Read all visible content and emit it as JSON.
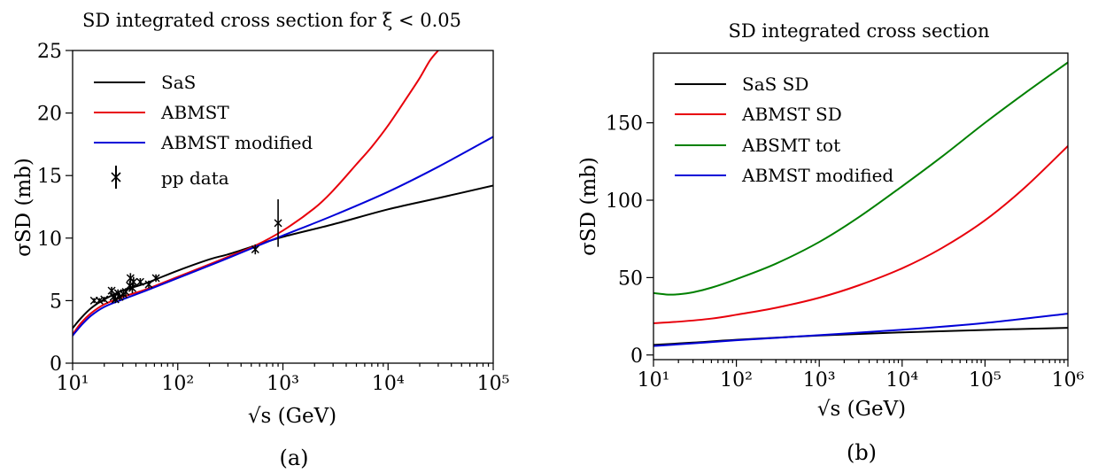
{
  "chart_data": [
    {
      "id": "a",
      "type": "line",
      "title": "SD integrated cross section for ξ < 0.05",
      "xlabel": "√s (GeV)",
      "ylabel": "σSD (mb)",
      "caption": "(a)",
      "xscale": "log",
      "xlim": [
        10,
        100000
      ],
      "ylim": [
        0,
        25
      ],
      "xticks": [
        {
          "value": 10,
          "label": "10¹"
        },
        {
          "value": 100,
          "label": "10²"
        },
        {
          "value": 1000,
          "label": "10³"
        },
        {
          "value": 10000,
          "label": "10⁴"
        },
        {
          "value": 100000,
          "label": "10⁵"
        }
      ],
      "yticks": [
        {
          "value": 0,
          "label": "0"
        },
        {
          "value": 5,
          "label": "5"
        },
        {
          "value": 10,
          "label": "10"
        },
        {
          "value": 15,
          "label": "15"
        },
        {
          "value": 20,
          "label": "20"
        },
        {
          "value": 25,
          "label": "25"
        }
      ],
      "legend": "top-left",
      "grid": false,
      "series": [
        {
          "name": "SaS",
          "color": "#000000",
          "x": [
            10,
            12,
            15,
            20,
            30,
            50,
            100,
            200,
            300,
            546,
            1000,
            3000,
            10000,
            30000,
            100000
          ],
          "y": [
            2.8,
            3.6,
            4.4,
            5.1,
            5.8,
            6.4,
            7.4,
            8.3,
            8.7,
            9.4,
            10.1,
            11.1,
            12.3,
            13.2,
            14.2
          ]
        },
        {
          "name": "ABMST",
          "color": "#e8000b",
          "x": [
            10,
            12,
            15,
            20,
            30,
            50,
            100,
            200,
            300,
            546,
            1000,
            2000,
            3000,
            5000,
            7000,
            10000,
            15000,
            20000,
            25000,
            30000
          ],
          "y": [
            2.3,
            3.2,
            4.0,
            4.7,
            5.3,
            5.9,
            6.9,
            7.9,
            8.5,
            9.4,
            10.6,
            12.4,
            13.8,
            15.9,
            17.3,
            19.0,
            21.2,
            22.8,
            24.2,
            25.0
          ]
        },
        {
          "name": "ABMST modified",
          "color": "#0000d8",
          "x": [
            10,
            12,
            15,
            20,
            30,
            50,
            100,
            200,
            300,
            546,
            1000,
            3000,
            10000,
            30000,
            100000
          ],
          "y": [
            2.2,
            3.0,
            3.8,
            4.5,
            5.1,
            5.8,
            6.8,
            7.8,
            8.4,
            9.3,
            10.2,
            11.8,
            13.7,
            15.7,
            18.1
          ]
        }
      ],
      "pp_data": {
        "name": "pp data",
        "color": "#000000",
        "points": [
          {
            "x": 16,
            "y": 5.0,
            "err": 0.2
          },
          {
            "x": 18,
            "y": 5.0,
            "err": 0.2
          },
          {
            "x": 20,
            "y": 5.1,
            "err": 0.2
          },
          {
            "x": 23.5,
            "y": 5.8,
            "err": 0.3
          },
          {
            "x": 24.5,
            "y": 5.3,
            "err": 0.3
          },
          {
            "x": 25.5,
            "y": 5.1,
            "err": 0.3
          },
          {
            "x": 27,
            "y": 5.6,
            "err": 0.3
          },
          {
            "x": 28,
            "y": 5.3,
            "err": 0.3
          },
          {
            "x": 30.5,
            "y": 5.5,
            "err": 0.3
          },
          {
            "x": 32,
            "y": 5.7,
            "err": 0.3
          },
          {
            "x": 35,
            "y": 6.2,
            "err": 0.4
          },
          {
            "x": 35.5,
            "y": 6.8,
            "err": 0.4
          },
          {
            "x": 37,
            "y": 6.0,
            "err": 0.4
          },
          {
            "x": 38,
            "y": 6.5,
            "err": 0.4
          },
          {
            "x": 44,
            "y": 6.5,
            "err": 0.3
          },
          {
            "x": 53,
            "y": 6.3,
            "err": 0.3
          },
          {
            "x": 62,
            "y": 6.8,
            "err": 0.3
          },
          {
            "x": 546,
            "y": 9.1,
            "err": 0.4
          },
          {
            "x": 900,
            "y": 11.2,
            "err": 1.9
          }
        ]
      }
    },
    {
      "id": "b",
      "type": "line",
      "title": "SD integrated cross section",
      "xlabel": "√s (GeV)",
      "ylabel": "σSD (mb)",
      "caption": "(b)",
      "xscale": "log",
      "xlim": [
        10,
        1000000
      ],
      "ylim": [
        -3,
        195
      ],
      "xticks": [
        {
          "value": 10,
          "label": "10¹"
        },
        {
          "value": 100,
          "label": "10²"
        },
        {
          "value": 1000,
          "label": "10³"
        },
        {
          "value": 10000,
          "label": "10⁴"
        },
        {
          "value": 100000,
          "label": "10⁵"
        },
        {
          "value": 1000000,
          "label": "10⁶"
        }
      ],
      "yticks": [
        {
          "value": 0,
          "label": "0"
        },
        {
          "value": 50,
          "label": "50"
        },
        {
          "value": 100,
          "label": "100"
        },
        {
          "value": 150,
          "label": "150"
        }
      ],
      "legend": "top-left",
      "grid": false,
      "series": [
        {
          "name": "SaS SD",
          "color": "#000000",
          "x": [
            10,
            30,
            100,
            1000,
            10000,
            100000,
            1000000
          ],
          "y": [
            6.5,
            8.0,
            9.8,
            12.6,
            14.6,
            16.2,
            17.5
          ]
        },
        {
          "name": "ABMST SD",
          "color": "#e8000b",
          "x": [
            10,
            20,
            50,
            100,
            300,
            1000,
            3000,
            10000,
            30000,
            100000,
            300000,
            1000000
          ],
          "y": [
            20.5,
            21.5,
            23.5,
            26.0,
            30.5,
            37.0,
            45.0,
            56.0,
            69.0,
            87.0,
            108.0,
            135.0
          ]
        },
        {
          "name": "ABSMT tot",
          "color": "#008000",
          "x": [
            10,
            15,
            20,
            30,
            50,
            100,
            300,
            1000,
            3000,
            10000,
            30000,
            100000,
            300000,
            1000000
          ],
          "y": [
            40.0,
            39.0,
            39.2,
            40.5,
            43.5,
            49.0,
            59.0,
            73.0,
            89.0,
            109.0,
            128.0,
            150.0,
            169.0,
            189.0
          ]
        },
        {
          "name": "ABMST modified",
          "color": "#0000d8",
          "x": [
            10,
            30,
            100,
            1000,
            10000,
            100000,
            1000000
          ],
          "y": [
            5.8,
            7.5,
            9.5,
            12.8,
            16.3,
            20.7,
            26.7
          ]
        }
      ]
    }
  ]
}
